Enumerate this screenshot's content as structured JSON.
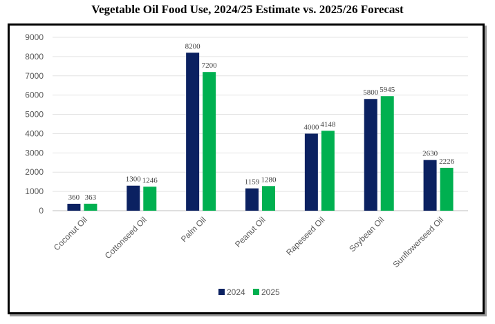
{
  "chart_data": {
    "type": "bar",
    "title": "Vegetable Oil Food Use, 2024/25 Estimate vs. 2025/26 Forecast",
    "categories": [
      "Coconut Oil",
      "Cottonseed Oil",
      "Palm Oil",
      "Peanut Oil",
      "Rapeseed Oil",
      "Soybean Oil",
      "Sunflowerseed Oil"
    ],
    "series": [
      {
        "name": "2024",
        "color": "#0b2161",
        "values": [
          360,
          1300,
          8200,
          1159,
          4000,
          5800,
          2630
        ]
      },
      {
        "name": "2025",
        "color": "#00b050",
        "values": [
          363,
          1246,
          7200,
          1280,
          4148,
          5945,
          2226
        ]
      }
    ],
    "xlabel": "",
    "ylabel": "",
    "ylim": [
      0,
      9000
    ],
    "yticks": [
      0,
      1000,
      2000,
      3000,
      4000,
      5000,
      6000,
      7000,
      8000,
      9000
    ],
    "grid": true,
    "legend_position": "bottom"
  }
}
